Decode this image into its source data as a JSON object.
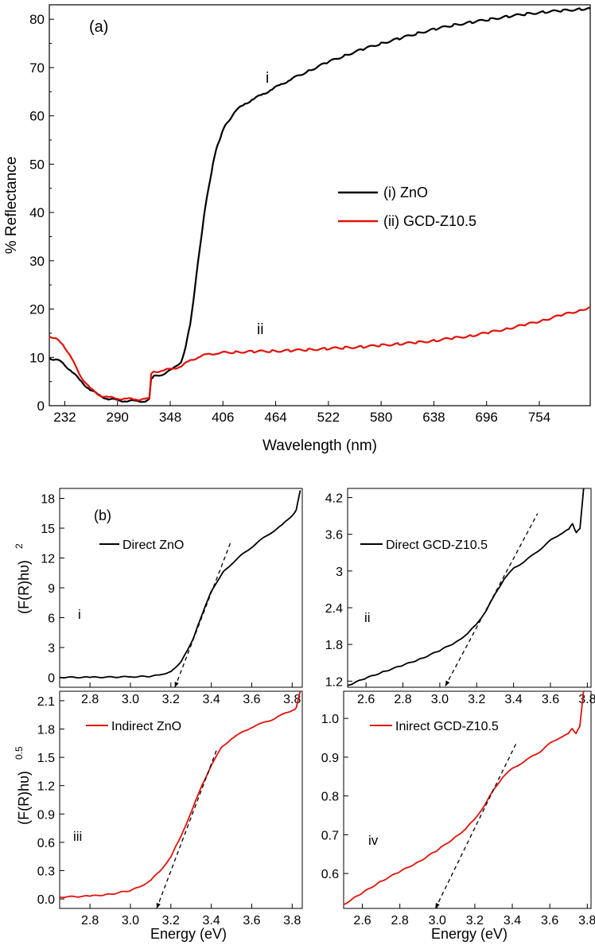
{
  "chart_data": [
    {
      "id": "a",
      "type": "line",
      "panel_label": "(a)",
      "xlabel": "Wavelength (nm)",
      "ylabel": "% Reflectance",
      "xlim": [
        215,
        810
      ],
      "ylim": [
        0,
        83
      ],
      "xticks": [
        232,
        290,
        348,
        406,
        464,
        522,
        580,
        638,
        696,
        754
      ],
      "yticks": [
        0,
        10,
        20,
        30,
        40,
        50,
        60,
        70,
        80
      ],
      "legend": {
        "position": "center-right"
      },
      "series": [
        {
          "name": "(i) ZnO",
          "color": "#000000",
          "x": [
            215,
            222,
            230,
            240,
            250,
            260,
            270,
            280,
            290,
            300,
            310,
            320,
            325,
            327,
            330,
            340,
            350,
            360,
            365,
            370,
            375,
            380,
            385,
            390,
            395,
            400,
            405,
            410,
            420,
            430,
            440,
            450,
            460,
            470,
            480,
            500,
            520,
            540,
            560,
            580,
            600,
            620,
            640,
            660,
            680,
            700,
            720,
            740,
            760,
            780,
            800,
            810
          ],
          "y": [
            9.8,
            9.6,
            8.8,
            7,
            5,
            3.3,
            2.1,
            1.4,
            1.1,
            1.0,
            0.9,
            1.0,
            1.2,
            5.8,
            6.0,
            6.6,
            7.4,
            9.2,
            12,
            17,
            24,
            32,
            39,
            45,
            50,
            54,
            56.5,
            58.5,
            61,
            62.5,
            63.5,
            64.5,
            65.5,
            66.5,
            67.5,
            69.3,
            71,
            72.5,
            73.8,
            75,
            76,
            77.1,
            78,
            78.8,
            79.4,
            80,
            80.6,
            81.1,
            81.5,
            81.8,
            82.1,
            82.2
          ]
        },
        {
          "name": "(ii) GCD-Z10.5",
          "color": "#e3120b",
          "x": [
            215,
            222,
            230,
            240,
            250,
            260,
            270,
            280,
            290,
            300,
            310,
            320,
            325,
            327,
            330,
            340,
            350,
            360,
            370,
            380,
            390,
            400,
            420,
            440,
            460,
            480,
            500,
            520,
            540,
            560,
            580,
            600,
            620,
            640,
            660,
            680,
            700,
            720,
            740,
            760,
            780,
            800,
            810
          ],
          "y": [
            14.5,
            13.8,
            12.8,
            9.5,
            6,
            3.5,
            2.2,
            1.7,
            1.5,
            1.4,
            1.3,
            1.4,
            1.4,
            6.6,
            7.0,
            7.3,
            7.6,
            8.2,
            9.3,
            10.2,
            10.6,
            10.9,
            11.1,
            11.2,
            11.3,
            11.4,
            11.6,
            11.8,
            12.0,
            12.2,
            12.5,
            12.8,
            13.1,
            13.5,
            14.0,
            14.5,
            15.2,
            16.0,
            16.8,
            17.8,
            18.8,
            19.8,
            20.4
          ]
        }
      ],
      "annotations": [
        "i",
        "ii"
      ]
    },
    {
      "id": "b-i",
      "type": "line",
      "panel_label": "(b)",
      "roman": "i",
      "ylabel": "(F(R)hυ)",
      "ylabel_exp": "2",
      "xlim": [
        2.65,
        3.85
      ],
      "ylim": [
        -1,
        19
      ],
      "xticks": [
        2.8,
        3.0,
        3.2,
        3.4,
        3.6,
        3.8
      ],
      "xtick_labels": [
        "2.8",
        "3.0",
        "3.2",
        "3.4",
        "3.6",
        "3.8"
      ],
      "yticks": [
        0,
        3,
        6,
        9,
        12,
        15,
        18
      ],
      "legend_label": "Direct ZnO",
      "series": [
        {
          "name": "Direct ZnO",
          "color": "#000000",
          "x": [
            2.65,
            2.8,
            3.0,
            3.1,
            3.15,
            3.2,
            3.22,
            3.25,
            3.28,
            3.31,
            3.34,
            3.37,
            3.4,
            3.43,
            3.46,
            3.5,
            3.55,
            3.6,
            3.65,
            3.7,
            3.75,
            3.8,
            3.82,
            3.84
          ],
          "y": [
            0,
            0,
            0.05,
            0.1,
            0.25,
            0.6,
            0.9,
            1.6,
            2.6,
            3.9,
            5.5,
            7.2,
            8.6,
            9.7,
            10.6,
            11.4,
            12.3,
            13.1,
            13.9,
            14.6,
            15.3,
            16.3,
            16.8,
            18.8
          ]
        }
      ],
      "tangent": {
        "x": [
          3.22,
          3.5
        ],
        "y": [
          -1.0,
          13.8
        ]
      }
    },
    {
      "id": "b-ii",
      "type": "line",
      "roman": "ii",
      "xlim": [
        2.5,
        3.82
      ],
      "ylim": [
        1.1,
        4.35
      ],
      "xticks": [
        2.6,
        2.8,
        3.0,
        3.2,
        3.4,
        3.6,
        3.8
      ],
      "xtick_labels": [
        "2.6",
        "2.8",
        "3.0",
        "3.2",
        "3.4",
        "3.6",
        "3.8"
      ],
      "yticks": [
        1.2,
        1.8,
        2.4,
        3.0,
        3.6,
        4.2
      ],
      "legend_label": "Direct GCD-Z10.5",
      "series": [
        {
          "name": "Direct GCD-Z10.5",
          "color": "#000000",
          "x": [
            2.5,
            2.6,
            2.7,
            2.8,
            2.9,
            3.0,
            3.1,
            3.15,
            3.2,
            3.25,
            3.3,
            3.35,
            3.4,
            3.45,
            3.5,
            3.55,
            3.6,
            3.65,
            3.7,
            3.72,
            3.74,
            3.76,
            3.78
          ],
          "y": [
            1.13,
            1.25,
            1.36,
            1.46,
            1.57,
            1.7,
            1.86,
            1.98,
            2.13,
            2.35,
            2.62,
            2.88,
            3.04,
            3.14,
            3.25,
            3.37,
            3.5,
            3.6,
            3.68,
            3.78,
            3.62,
            3.7,
            4.35
          ]
        }
      ],
      "tangent": {
        "x": [
          3.03,
          3.53
        ],
        "y": [
          1.12,
          3.94
        ]
      }
    },
    {
      "id": "b-iii",
      "type": "line",
      "roman": "iii",
      "xlabel": "Energy (eV)",
      "ylabel": "(F(R)hυ)",
      "ylabel_exp": "0.5",
      "xlim": [
        2.65,
        3.85
      ],
      "ylim": [
        -0.1,
        2.2
      ],
      "xticks": [
        2.8,
        3.0,
        3.2,
        3.4,
        3.6,
        3.8
      ],
      "xtick_labels": [
        "2.8",
        "3.0",
        "3.2",
        "3.4",
        "3.6",
        "3.8"
      ],
      "yticks": [
        0.0,
        0.3,
        0.6,
        0.9,
        1.2,
        1.5,
        1.8,
        2.1
      ],
      "ytick_labels": [
        "0.0",
        "0.3",
        "0.6",
        "0.9",
        "1.2",
        "1.5",
        "1.8",
        "2.1"
      ],
      "legend_label": "Indirect ZnO",
      "series": [
        {
          "name": "Indirect ZnO",
          "color": "#e3120b",
          "x": [
            2.65,
            2.8,
            2.9,
            3.0,
            3.05,
            3.1,
            3.15,
            3.2,
            3.25,
            3.3,
            3.35,
            3.4,
            3.45,
            3.5,
            3.55,
            3.6,
            3.65,
            3.7,
            3.75,
            3.8,
            3.82,
            3.84
          ],
          "y": [
            0.02,
            0.03,
            0.05,
            0.09,
            0.13,
            0.2,
            0.3,
            0.45,
            0.66,
            0.92,
            1.18,
            1.42,
            1.6,
            1.7,
            1.76,
            1.82,
            1.86,
            1.9,
            1.95,
            2.0,
            2.02,
            2.2
          ]
        }
      ],
      "tangent": {
        "x": [
          3.13,
          3.43
        ],
        "y": [
          -0.1,
          1.6
        ]
      }
    },
    {
      "id": "b-iv",
      "type": "line",
      "roman": "iv",
      "xlabel": "Energy (eV)",
      "xlim": [
        2.5,
        3.82
      ],
      "ylim": [
        0.51,
        1.07
      ],
      "xticks": [
        2.6,
        2.8,
        3.0,
        3.2,
        3.4,
        3.6,
        3.8
      ],
      "xtick_labels": [
        "2.6",
        "2.8",
        "3.0",
        "3.2",
        "3.4",
        "3.6",
        "3.8"
      ],
      "yticks": [
        0.6,
        0.7,
        0.8,
        0.9,
        1.0
      ],
      "ytick_labels": [
        "0.6",
        "0.7",
        "0.8",
        "0.9",
        "1.0"
      ],
      "legend_label": "Inirect GCD-Z10.5",
      "series": [
        {
          "name": "Inirect GCD-Z10.5",
          "color": "#e3120b",
          "x": [
            2.5,
            2.6,
            2.7,
            2.8,
            2.9,
            3.0,
            3.1,
            3.15,
            3.2,
            3.25,
            3.3,
            3.35,
            3.4,
            3.45,
            3.5,
            3.55,
            3.6,
            3.65,
            3.7,
            3.72,
            3.74,
            3.76,
            3.78
          ],
          "y": [
            0.52,
            0.55,
            0.58,
            0.605,
            0.63,
            0.66,
            0.695,
            0.715,
            0.74,
            0.775,
            0.815,
            0.85,
            0.87,
            0.885,
            0.9,
            0.915,
            0.935,
            0.95,
            0.96,
            0.975,
            0.96,
            0.98,
            1.07
          ]
        }
      ],
      "tangent": {
        "x": [
          2.99,
          3.42
        ],
        "y": [
          0.51,
          0.935
        ]
      }
    }
  ]
}
